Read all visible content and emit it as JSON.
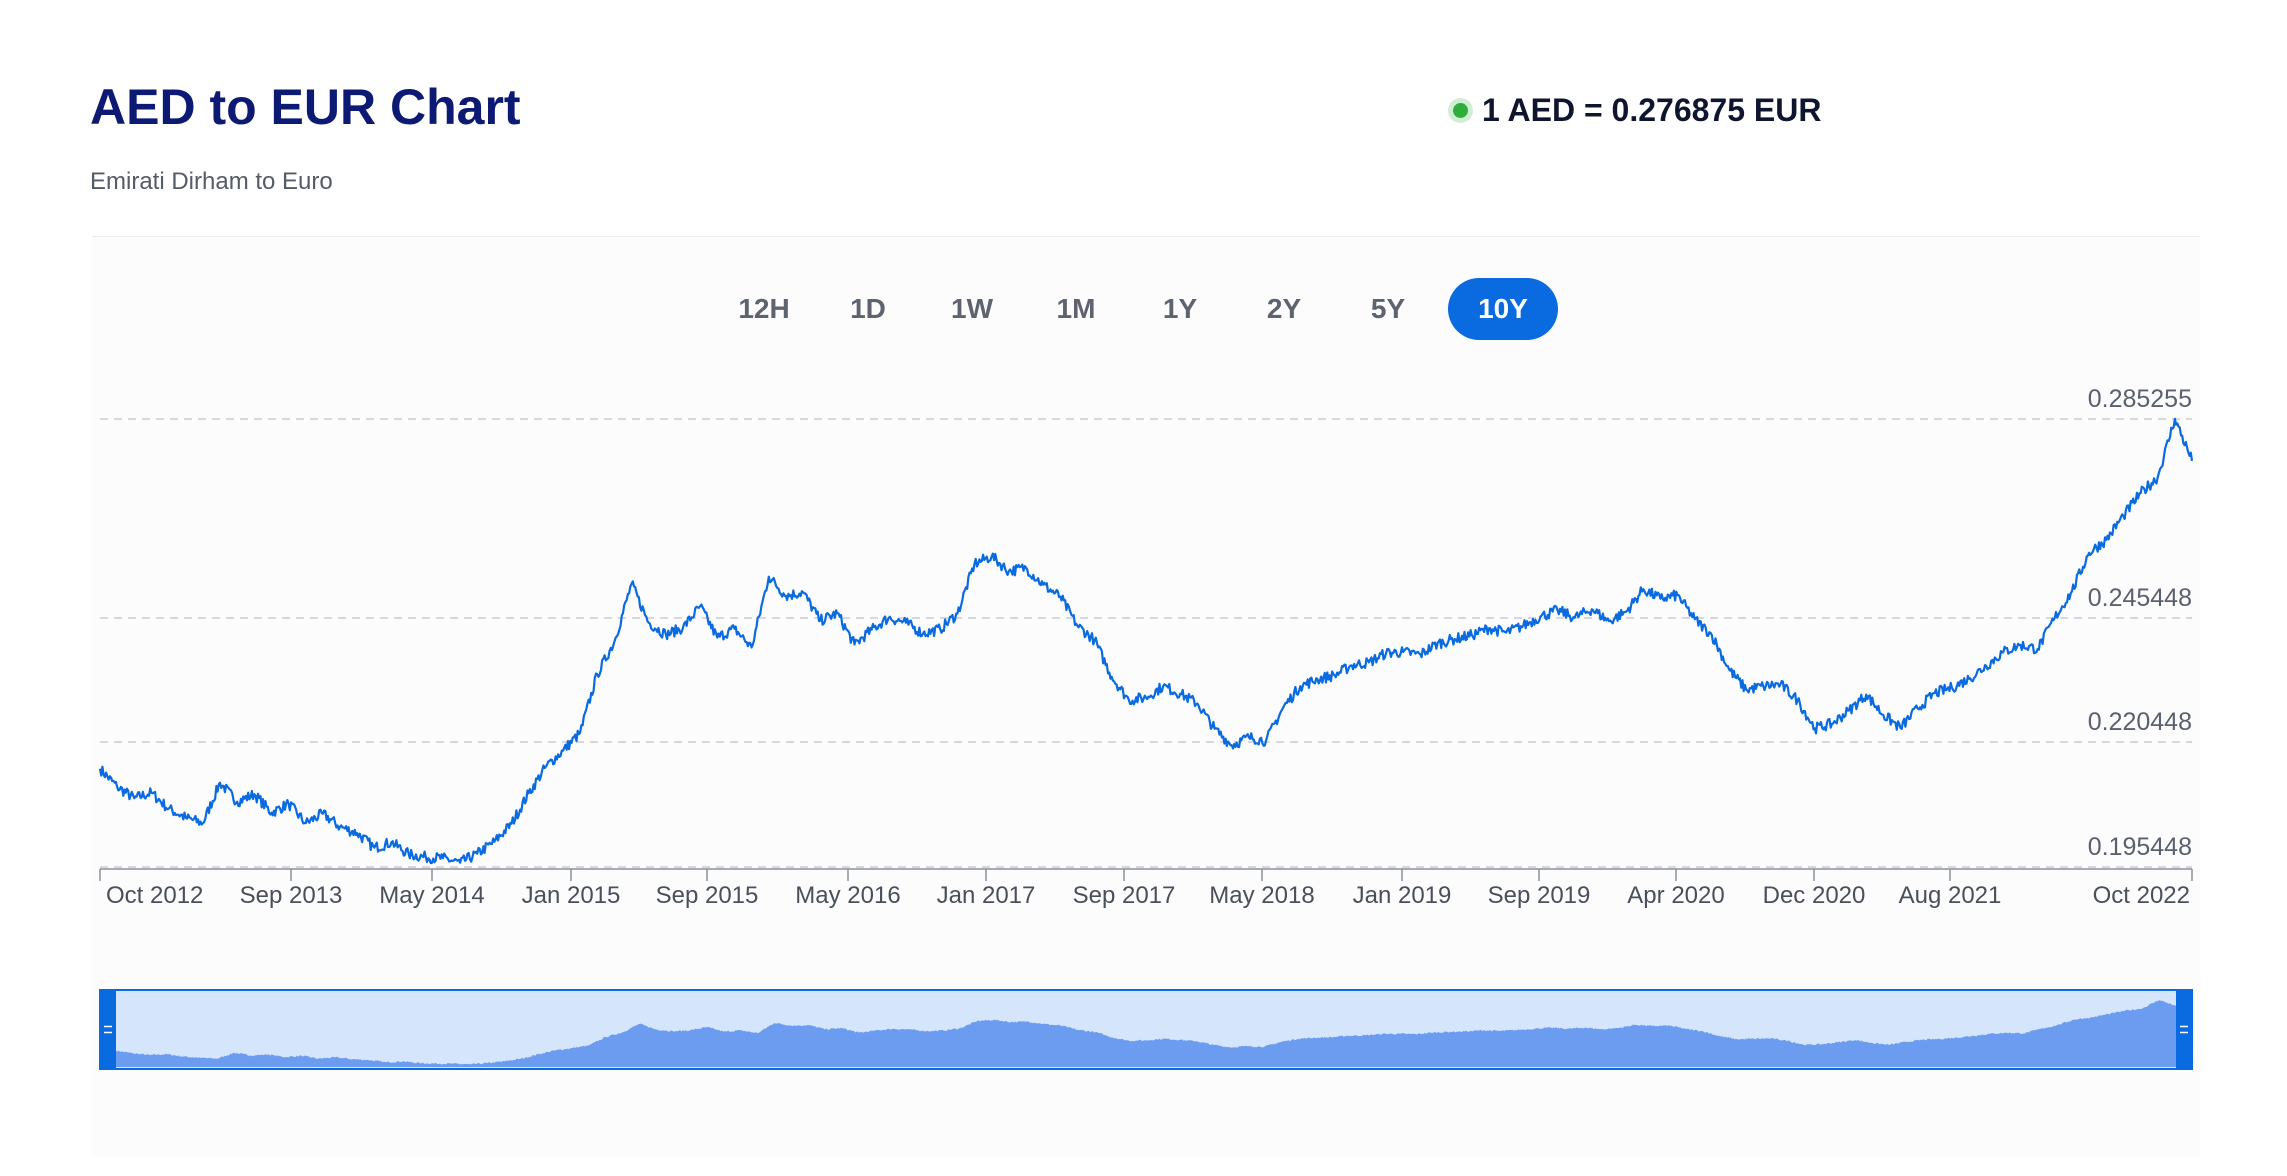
{
  "header": {
    "title": "AED to EUR Chart",
    "subtitle": "Emirati Dirham to Euro",
    "rate": "1 AED = 0.276875 EUR"
  },
  "range_tabs": [
    {
      "label": "12H",
      "active": false
    },
    {
      "label": "1D",
      "active": false
    },
    {
      "label": "1W",
      "active": false
    },
    {
      "label": "1M",
      "active": false
    },
    {
      "label": "1Y",
      "active": false
    },
    {
      "label": "2Y",
      "active": false
    },
    {
      "label": "5Y",
      "active": false
    },
    {
      "label": "10Y",
      "active": true
    }
  ],
  "colors": {
    "accent": "#0a6be0",
    "line": "#0a6be0",
    "live_dot": "#2fae3d",
    "navigator_fill": "#6b9cf0",
    "navigator_bg": "#d5e5fb"
  },
  "chart_data": {
    "type": "line",
    "title": "AED to EUR Chart",
    "ylim": [
      0.195448,
      0.285255
    ],
    "y_ticks": [
      "0.285255",
      "0.245448",
      "0.220448",
      "0.195448"
    ],
    "x_tick_labels": [
      "Oct 2012",
      "Sep 2013",
      "May 2014",
      "Jan 2015",
      "Sep 2015",
      "May 2016",
      "Jan 2017",
      "Sep 2017",
      "May 2018",
      "Jan 2019",
      "Sep 2019",
      "Apr 2020",
      "Dec 2020",
      "Aug 2021",
      "Oct 2022"
    ],
    "x_range": [
      "2012-08",
      "2022-09"
    ],
    "grid": "horizontal dashed",
    "navigator": true,
    "series": [
      {
        "points": [
          [
            "2012-08",
            0.2151
          ],
          [
            "2012-09",
            0.2115
          ],
          [
            "2012-10",
            0.2092
          ],
          [
            "2012-11",
            0.2103
          ],
          [
            "2012-12",
            0.2071
          ],
          [
            "2013-01",
            0.2053
          ],
          [
            "2013-02",
            0.2042
          ],
          [
            "2013-03",
            0.2123
          ],
          [
            "2013-04",
            0.2085
          ],
          [
            "2013-05",
            0.21
          ],
          [
            "2013-06",
            0.2063
          ],
          [
            "2013-07",
            0.2081
          ],
          [
            "2013-08",
            0.2042
          ],
          [
            "2013-09",
            0.2061
          ],
          [
            "2013-10",
            0.2035
          ],
          [
            "2013-11",
            0.2022
          ],
          [
            "2013-12",
            0.1993
          ],
          [
            "2014-01",
            0.2004
          ],
          [
            "2014-02",
            0.198
          ],
          [
            "2014-03",
            0.1974
          ],
          [
            "2014-04",
            0.1972
          ],
          [
            "2014-05",
            0.1963
          ],
          [
            "2014-06",
            0.1981
          ],
          [
            "2014-07",
            0.2005
          ],
          [
            "2014-08",
            0.2041
          ],
          [
            "2014-09",
            0.2102
          ],
          [
            "2014-10",
            0.2155
          ],
          [
            "2014-11",
            0.2187
          ],
          [
            "2014-12",
            0.2223
          ],
          [
            "2015-01",
            0.2341
          ],
          [
            "2015-02",
            0.2407
          ],
          [
            "2015-03",
            0.2523
          ],
          [
            "2015-04",
            0.2445
          ],
          [
            "2015-05",
            0.2421
          ],
          [
            "2015-06",
            0.2435
          ],
          [
            "2015-07",
            0.2478
          ],
          [
            "2015-08",
            0.2415
          ],
          [
            "2015-09",
            0.2433
          ],
          [
            "2015-10",
            0.2395
          ],
          [
            "2015-11",
            0.2537
          ],
          [
            "2015-12",
            0.2499
          ],
          [
            "2016-01",
            0.2506
          ],
          [
            "2016-02",
            0.2449
          ],
          [
            "2016-03",
            0.2464
          ],
          [
            "2016-04",
            0.2401
          ],
          [
            "2016-05",
            0.2431
          ],
          [
            "2016-06",
            0.2455
          ],
          [
            "2016-07",
            0.2445
          ],
          [
            "2016-08",
            0.2423
          ],
          [
            "2016-09",
            0.2432
          ],
          [
            "2016-10",
            0.2463
          ],
          [
            "2016-11",
            0.2563
          ],
          [
            "2016-12",
            0.2578
          ],
          [
            "2017-01",
            0.2548
          ],
          [
            "2017-02",
            0.2555
          ],
          [
            "2017-03",
            0.2521
          ],
          [
            "2017-04",
            0.2497
          ],
          [
            "2017-05",
            0.2439
          ],
          [
            "2017-06",
            0.241
          ],
          [
            "2017-07",
            0.2336
          ],
          [
            "2017-08",
            0.2289
          ],
          [
            "2017-09",
            0.2294
          ],
          [
            "2017-10",
            0.2317
          ],
          [
            "2017-11",
            0.2302
          ],
          [
            "2017-12",
            0.2282
          ],
          [
            "2018-01",
            0.2231
          ],
          [
            "2018-02",
            0.2198
          ],
          [
            "2018-03",
            0.2214
          ],
          [
            "2018-04",
            0.2207
          ],
          [
            "2018-05",
            0.2274
          ],
          [
            "2018-06",
            0.2317
          ],
          [
            "2018-07",
            0.2331
          ],
          [
            "2018-08",
            0.2339
          ],
          [
            "2018-09",
            0.2359
          ],
          [
            "2018-10",
            0.2365
          ],
          [
            "2018-11",
            0.2384
          ],
          [
            "2018-12",
            0.2386
          ],
          [
            "2019-01",
            0.2381
          ],
          [
            "2019-02",
            0.2403
          ],
          [
            "2019-03",
            0.2412
          ],
          [
            "2019-04",
            0.242
          ],
          [
            "2019-05",
            0.2434
          ],
          [
            "2019-06",
            0.2425
          ],
          [
            "2019-07",
            0.2439
          ],
          [
            "2019-08",
            0.2457
          ],
          [
            "2019-09",
            0.247
          ],
          [
            "2019-10",
            0.2455
          ],
          [
            "2019-11",
            0.2472
          ],
          [
            "2019-12",
            0.2448
          ],
          [
            "2020-01",
            0.2467
          ],
          [
            "2020-02",
            0.2512
          ],
          [
            "2020-03",
            0.2493
          ],
          [
            "2020-04",
            0.25
          ],
          [
            "2020-05",
            0.2452
          ],
          [
            "2020-06",
            0.242
          ],
          [
            "2020-07",
            0.2351
          ],
          [
            "2020-08",
            0.231
          ],
          [
            "2020-09",
            0.2317
          ],
          [
            "2020-10",
            0.2321
          ],
          [
            "2020-11",
            0.2289
          ],
          [
            "2020-12",
            0.2232
          ],
          [
            "2021-01",
            0.2241
          ],
          [
            "2021-02",
            0.2268
          ],
          [
            "2021-03",
            0.23
          ],
          [
            "2021-04",
            0.2259
          ],
          [
            "2021-05",
            0.2233
          ],
          [
            "2021-06",
            0.2272
          ],
          [
            "2021-07",
            0.2303
          ],
          [
            "2021-08",
            0.2314
          ],
          [
            "2021-09",
            0.2332
          ],
          [
            "2021-10",
            0.2358
          ],
          [
            "2021-11",
            0.2386
          ],
          [
            "2021-12",
            0.24
          ],
          [
            "2022-01",
            0.2392
          ],
          [
            "2022-02",
            0.2455
          ],
          [
            "2022-03",
            0.2508
          ],
          [
            "2022-04",
            0.2585
          ],
          [
            "2022-05",
            0.2611
          ],
          [
            "2022-06",
            0.2659
          ],
          [
            "2022-07",
            0.2704
          ],
          [
            "2022-08",
            0.2736
          ],
          [
            "2022-09",
            0.2853
          ],
          [
            "2022-10",
            0.2769
          ]
        ]
      }
    ]
  }
}
